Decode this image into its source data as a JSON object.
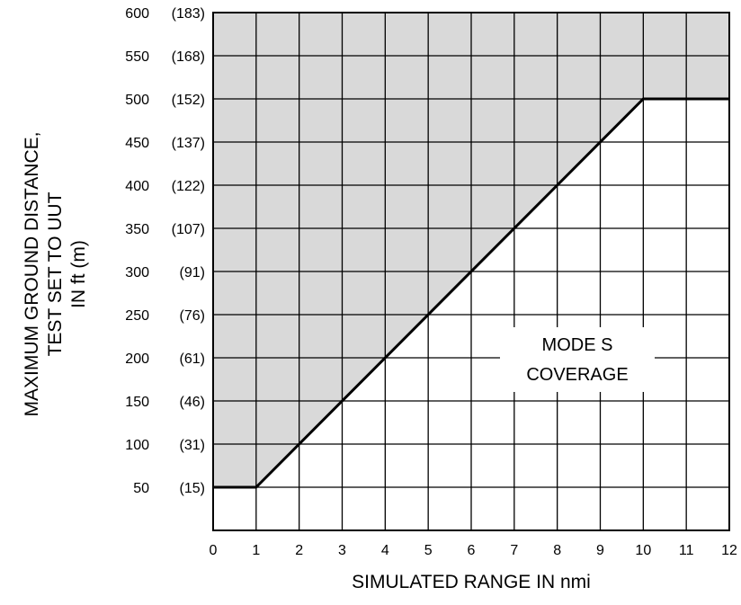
{
  "chart_data": {
    "type": "line",
    "xlabel": "SIMULATED RANGE IN nmi",
    "ylabel_lines": [
      "MAXIMUM GROUND DISTANCE,",
      "TEST SET TO UUT",
      "IN ft (m)"
    ],
    "x_ticks": [
      "0",
      "1",
      "2",
      "3",
      "4",
      "5",
      "6",
      "7",
      "8",
      "9",
      "10",
      "11",
      "12"
    ],
    "y_ticks": [
      {
        "value": 50,
        "label": "50",
        "metric": "(15)"
      },
      {
        "value": 100,
        "label": "100",
        "metric": "(31)"
      },
      {
        "value": 150,
        "label": "150",
        "metric": "(46)"
      },
      {
        "value": 200,
        "label": "200",
        "metric": "(61)"
      },
      {
        "value": 250,
        "label": "250",
        "metric": "(76)"
      },
      {
        "value": 300,
        "label": "300",
        "metric": "(91)"
      },
      {
        "value": 350,
        "label": "350",
        "metric": "(107)"
      },
      {
        "value": 400,
        "label": "400",
        "metric": "(122)"
      },
      {
        "value": 450,
        "label": "450",
        "metric": "(137)"
      },
      {
        "value": 500,
        "label": "500",
        "metric": "(152)"
      },
      {
        "value": 550,
        "label": "550",
        "metric": "(168)"
      },
      {
        "value": 600,
        "label": "600",
        "metric": "(183)"
      }
    ],
    "xlim": [
      0,
      12
    ],
    "ylim": [
      0,
      600
    ],
    "grid": true,
    "series": [
      {
        "x": [
          0,
          1,
          10,
          12
        ],
        "y": [
          50,
          50,
          500,
          500
        ]
      }
    ],
    "shaded_region": "above the line",
    "shade_color": "#d9d9d9",
    "annotation_lines": [
      "MODE S",
      "COVERAGE"
    ]
  }
}
